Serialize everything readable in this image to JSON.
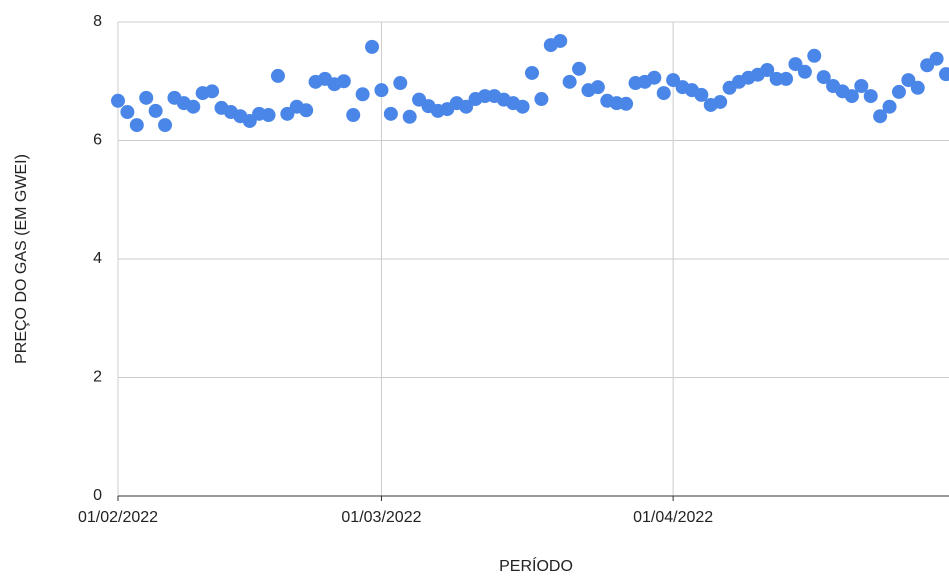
{
  "chart_data": {
    "type": "scatter",
    "x_label": "PERÍODO",
    "y_label": "PREÇO DO GAS (EM GWEI)",
    "x": [
      "01/02/2022",
      "02/02/2022",
      "03/02/2022",
      "04/02/2022",
      "05/02/2022",
      "06/02/2022",
      "07/02/2022",
      "08/02/2022",
      "09/02/2022",
      "10/02/2022",
      "11/02/2022",
      "12/02/2022",
      "13/02/2022",
      "14/02/2022",
      "15/02/2022",
      "16/02/2022",
      "17/02/2022",
      "18/02/2022",
      "19/02/2022",
      "20/02/2022",
      "21/02/2022",
      "22/02/2022",
      "23/02/2022",
      "24/02/2022",
      "25/02/2022",
      "26/02/2022",
      "27/02/2022",
      "28/02/2022",
      "01/03/2022",
      "02/03/2022",
      "03/03/2022",
      "04/03/2022",
      "05/03/2022",
      "06/03/2022",
      "07/03/2022",
      "08/03/2022",
      "09/03/2022",
      "10/03/2022",
      "11/03/2022",
      "12/03/2022",
      "13/03/2022",
      "14/03/2022",
      "15/03/2022",
      "16/03/2022",
      "17/03/2022",
      "18/03/2022",
      "19/03/2022",
      "20/03/2022",
      "21/03/2022",
      "22/03/2022",
      "23/03/2022",
      "24/03/2022",
      "25/03/2022",
      "26/03/2022",
      "27/03/2022",
      "28/03/2022",
      "29/03/2022",
      "30/03/2022",
      "31/03/2022",
      "01/04/2022",
      "02/04/2022",
      "03/04/2022",
      "04/04/2022",
      "05/04/2022",
      "06/04/2022",
      "07/04/2022",
      "08/04/2022",
      "09/04/2022",
      "10/04/2022",
      "11/04/2022",
      "12/04/2022",
      "13/04/2022",
      "14/04/2022",
      "15/04/2022",
      "16/04/2022",
      "17/04/2022",
      "18/04/2022",
      "19/04/2022",
      "20/04/2022",
      "21/04/2022",
      "22/04/2022",
      "23/04/2022",
      "24/04/2022",
      "25/04/2022",
      "26/04/2022",
      "27/04/2022",
      "28/04/2022",
      "29/04/2022",
      "30/04/2022"
    ],
    "series": [
      {
        "color": "#4a86e8",
        "values": [
          6.67,
          6.48,
          6.26,
          6.72,
          6.5,
          6.26,
          6.72,
          6.63,
          6.57,
          6.8,
          6.83,
          6.55,
          6.48,
          6.41,
          6.33,
          6.45,
          6.43,
          7.09,
          6.45,
          6.57,
          6.51,
          6.99,
          7.04,
          6.95,
          7.0,
          6.43,
          6.78,
          7.58,
          6.85,
          6.45,
          6.97,
          6.4,
          6.69,
          6.58,
          6.5,
          6.53,
          6.63,
          6.57,
          6.7,
          6.75,
          6.75,
          6.69,
          6.63,
          6.57,
          7.14,
          6.7,
          7.61,
          7.68,
          6.99,
          7.21,
          6.85,
          6.9,
          6.67,
          6.63,
          6.62,
          6.97,
          6.99,
          7.06,
          6.8,
          7.02,
          6.9,
          6.85,
          6.77,
          6.6,
          6.65,
          6.89,
          6.99,
          7.06,
          7.11,
          7.19,
          7.04,
          7.04,
          7.29,
          7.16,
          7.43,
          7.07,
          6.92,
          6.83,
          6.75,
          6.92,
          6.75,
          6.41,
          6.57,
          6.82,
          7.02,
          6.89,
          7.27,
          7.38,
          7.12
        ]
      }
    ],
    "xlim": [
      "01/02/2022",
      "30/04/2022"
    ],
    "xticks": [
      "01/02/2022",
      "01/03/2022",
      "01/04/2022"
    ],
    "ylim": [
      0,
      8
    ],
    "yticks": [
      0,
      2,
      4,
      6,
      8
    ],
    "grid": true
  }
}
